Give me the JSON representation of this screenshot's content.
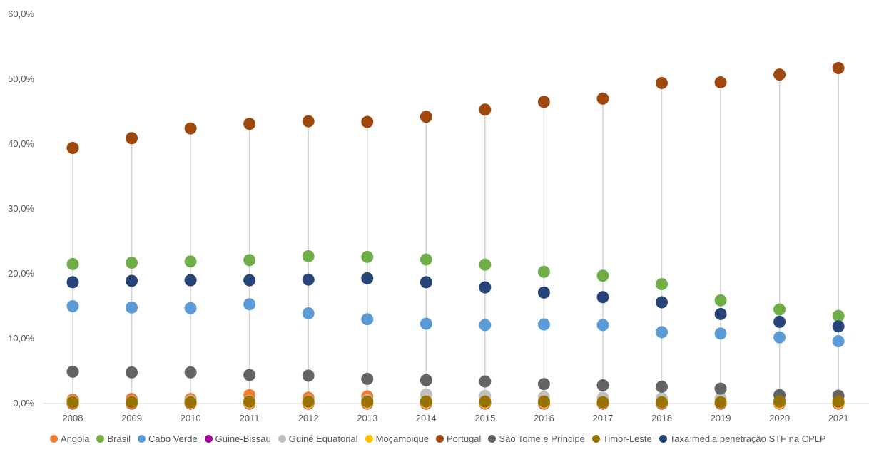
{
  "chart_data": {
    "type": "scatter",
    "categories": [
      "2008",
      "2009",
      "2010",
      "2011",
      "2012",
      "2013",
      "2014",
      "2015",
      "2016",
      "2017",
      "2018",
      "2019",
      "2020",
      "2021"
    ],
    "ylim": [
      0,
      60
    ],
    "y_ticks": [
      "0,0%",
      "10,0%",
      "20,0%",
      "30,0%",
      "40,0%",
      "50,0%",
      "60,0%"
    ],
    "grid": "vertical drop lines per year",
    "legend_position": "bottom",
    "series": [
      {
        "name": "Angola",
        "color": "#ED7D31",
        "values": [
          0.6,
          0.7,
          0.7,
          1.3,
          0.9,
          1.1,
          0.3,
          0.1,
          0.1,
          0.1,
          0.1,
          0.1,
          0.1,
          0.1
        ]
      },
      {
        "name": "Brasil",
        "color": "#70AD47",
        "values": [
          21.5,
          21.7,
          21.9,
          22.1,
          22.7,
          22.6,
          22.2,
          21.4,
          20.3,
          19.7,
          18.4,
          15.9,
          14.5,
          13.5
        ]
      },
      {
        "name": "Cabo Verde",
        "color": "#5B9BD5",
        "values": [
          15.0,
          14.8,
          14.7,
          15.3,
          13.9,
          13.0,
          12.3,
          12.1,
          12.2,
          12.1,
          11.0,
          10.8,
          10.2,
          9.6
        ]
      },
      {
        "name": "Guiné-Bissau",
        "color": "#A5009A",
        "values": [
          0.0,
          0.0,
          0.0,
          0.0,
          0.0,
          0.0,
          0.0,
          0.0,
          0.0,
          0.0,
          0.0,
          0.0,
          0.0,
          0.0
        ]
      },
      {
        "name": "Guiné Equatorial",
        "color": "#BFBFBF",
        "values": [
          0.3,
          0.3,
          0.4,
          0.4,
          0.4,
          0.5,
          1.4,
          1.2,
          1.0,
          0.9,
          0.8,
          0.8,
          0.5,
          0.3
        ]
      },
      {
        "name": "Moçambique",
        "color": "#FFC000",
        "values": [
          0.1,
          0.1,
          0.1,
          0.1,
          0.1,
          0.1,
          0.1,
          0.1,
          0.1,
          0.1,
          0.1,
          0.1,
          0.1,
          0.1
        ]
      },
      {
        "name": "Portugal",
        "color": "#9E480E",
        "values": [
          39.4,
          40.9,
          42.4,
          43.1,
          43.5,
          43.4,
          44.2,
          45.3,
          46.5,
          47.0,
          49.4,
          49.5,
          50.7,
          51.7
        ]
      },
      {
        "name": "São Tomé e Príncipe",
        "color": "#636363",
        "values": [
          4.9,
          4.8,
          4.8,
          4.4,
          4.3,
          3.8,
          3.6,
          3.4,
          3.0,
          2.8,
          2.6,
          2.3,
          1.3,
          1.2
        ]
      },
      {
        "name": "Timor-Leste",
        "color": "#997300",
        "values": [
          0.2,
          0.2,
          0.2,
          0.3,
          0.3,
          0.3,
          0.3,
          0.3,
          0.3,
          0.2,
          0.2,
          0.2,
          0.3,
          0.3
        ]
      },
      {
        "name": "Taxa média penetração STF na CPLP",
        "color": "#264478",
        "values": [
          18.7,
          18.9,
          19.0,
          19.0,
          19.1,
          19.3,
          18.7,
          17.9,
          17.1,
          16.4,
          15.6,
          13.8,
          12.6,
          11.9
        ]
      }
    ]
  }
}
